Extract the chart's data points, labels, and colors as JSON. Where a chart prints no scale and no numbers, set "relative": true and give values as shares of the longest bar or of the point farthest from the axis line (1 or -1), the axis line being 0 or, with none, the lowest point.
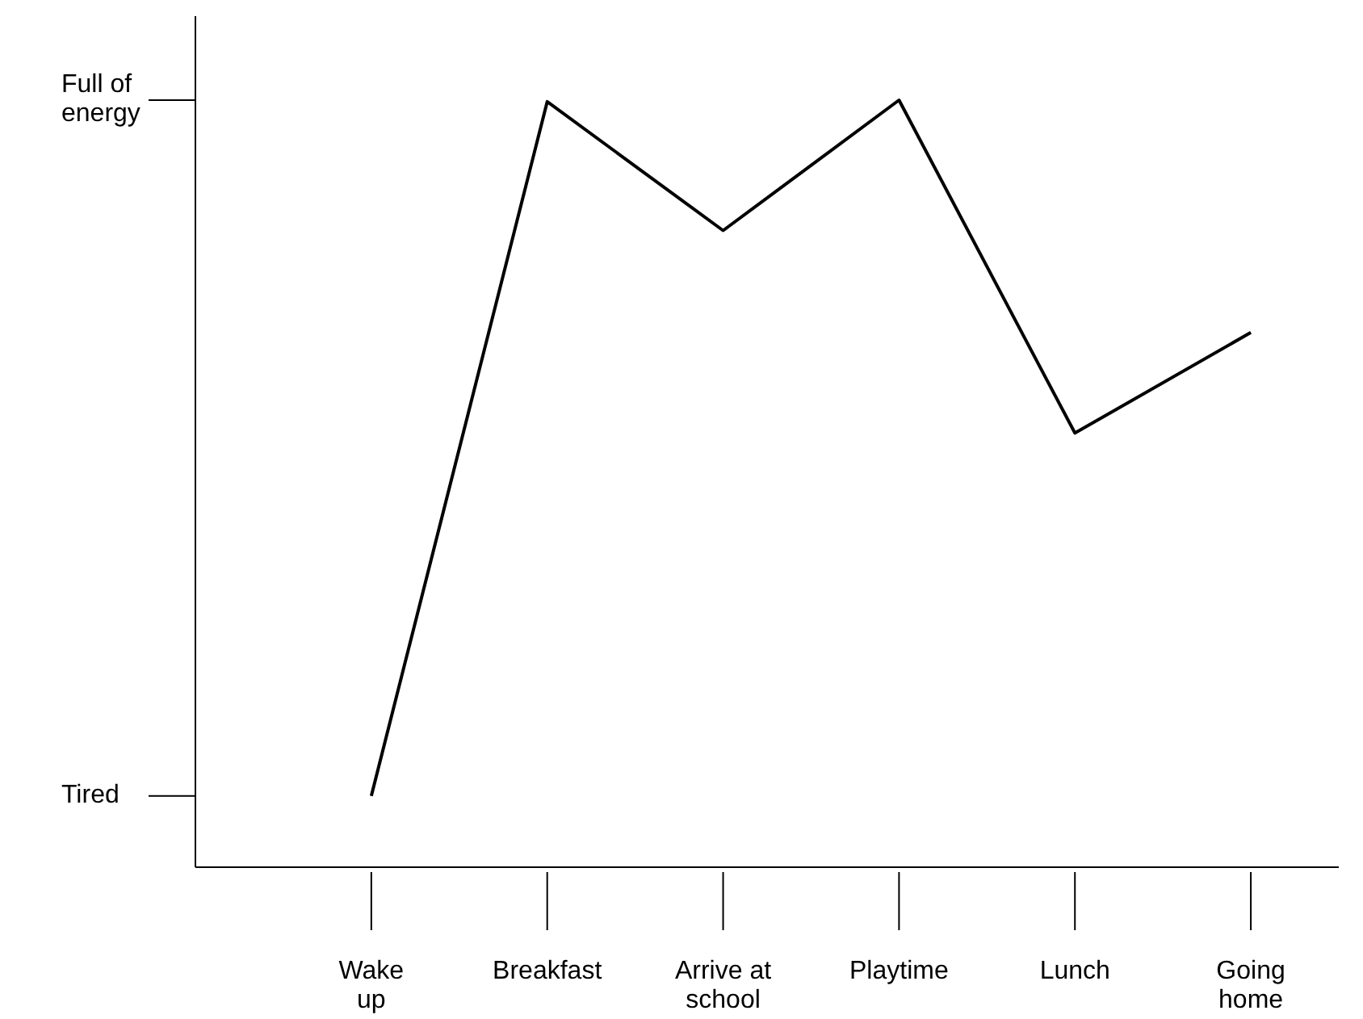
{
  "chart_data": {
    "type": "line",
    "categories": [
      "Wake up",
      "Breakfast",
      "Arrive at school",
      "Playtime",
      "Lunch",
      "Going home"
    ],
    "series": [
      {
        "color": "#000000",
        "values": [
          0.093,
          0.998,
          0.83,
          1,
          0.566,
          0.697
        ]
      }
    ],
    "relative": true,
    "annotations": [
      "Tired",
      "Full of energy"
    ],
    "marker": "none",
    "line_style": "solid"
  }
}
